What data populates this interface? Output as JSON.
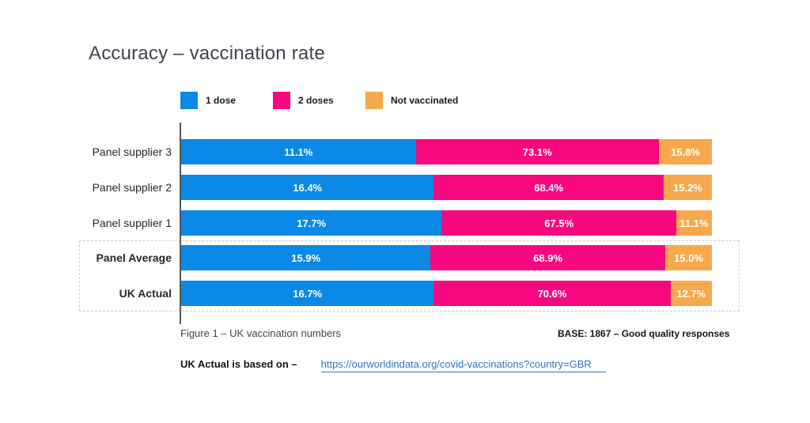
{
  "title": "Accuracy – vaccination rate",
  "chart_data": {
    "type": "bar",
    "orientation": "horizontal",
    "stacked": true,
    "value_unit": "%",
    "title": "Accuracy – vaccination rate",
    "legend_position": "top",
    "categories": [
      "Panel supplier 3",
      "Panel supplier 2",
      "Panel supplier 1",
      "Panel Average",
      "UK Actual"
    ],
    "series": [
      {
        "name": "1 dose",
        "color": "#0a89e6",
        "values": [
          11.1,
          16.4,
          17.7,
          15.9,
          16.7
        ]
      },
      {
        "name": "2 doses",
        "color": "#f8087f",
        "values": [
          73.1,
          68.4,
          67.5,
          68.9,
          70.6
        ]
      },
      {
        "name": "Not vaccinated",
        "color": "#f8a84c",
        "values": [
          15.8,
          15.2,
          11.1,
          15.0,
          12.7
        ]
      }
    ],
    "emphasized_categories": [
      "Panel Average",
      "UK Actual"
    ],
    "visual_segment_widths_pct": [
      [
        44.2,
        45.8,
        10.0
      ],
      [
        47.6,
        43.3,
        9.1
      ],
      [
        49.1,
        44.2,
        6.7
      ],
      [
        47.0,
        44.2,
        8.8
      ],
      [
        47.6,
        44.6,
        7.8
      ]
    ]
  },
  "footer": {
    "figure_caption": "Figure 1 – UK vaccination numbers",
    "base_note": "BASE: 1867 – Good quality responses",
    "source_label": "UK Actual is based on –",
    "source_url": "https://ourworldindata.org/covid-vaccinations?country=GBR",
    "link_color": "#2e74b5"
  }
}
